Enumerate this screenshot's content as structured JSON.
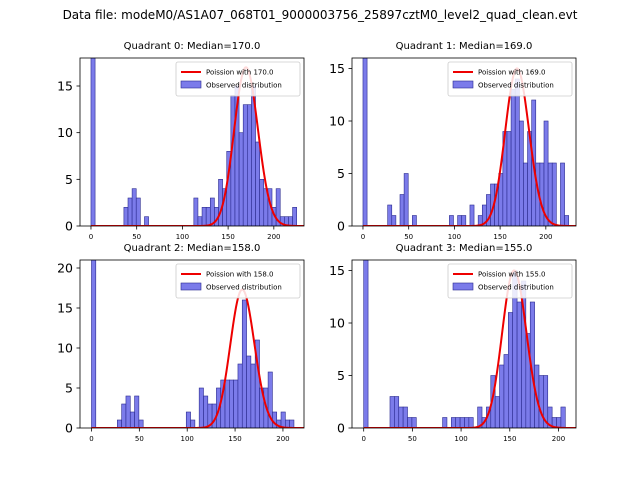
{
  "figure_title": "Data file: modeM0/AS1A07_068T01_9000003756_25897cztM0_level2_quad_clean.evt",
  "colors": {
    "bar_fill": "#7b7bea",
    "bar_edge": "#2b2b8f",
    "curve": "#ee0000"
  },
  "chart_data": [
    {
      "type": "bar",
      "title": "Quadrant 0: Median=170.0",
      "bin_width": 4.5,
      "x_lim": [
        -12,
        233
      ],
      "y_lim": [
        0,
        18
      ],
      "x_ticks": [
        0,
        50,
        100,
        150,
        200
      ],
      "x_tick_labels": [
        "0",
        "50",
        "100",
        "150",
        "200"
      ],
      "y_ticks": [
        0,
        5,
        10,
        15
      ],
      "y_tick_labels": [
        "0",
        "5",
        "10",
        "15"
      ],
      "bins": [
        [
          0,
          18
        ],
        [
          36,
          2
        ],
        [
          40.5,
          3
        ],
        [
          45,
          4
        ],
        [
          49.5,
          3
        ],
        [
          58.5,
          1
        ],
        [
          112.5,
          3
        ],
        [
          117,
          1
        ],
        [
          121.5,
          2
        ],
        [
          126,
          2
        ],
        [
          130.5,
          3
        ],
        [
          135,
          2
        ],
        [
          139.5,
          5
        ],
        [
          144,
          4
        ],
        [
          148.5,
          8
        ],
        [
          153,
          14
        ],
        [
          157.5,
          15
        ],
        [
          162,
          10
        ],
        [
          166.5,
          13
        ],
        [
          171,
          13
        ],
        [
          175.5,
          15
        ],
        [
          180,
          9
        ],
        [
          184.5,
          5
        ],
        [
          189,
          4
        ],
        [
          193.5,
          4
        ],
        [
          198,
          2
        ],
        [
          202.5,
          4
        ],
        [
          207,
          1
        ],
        [
          211.5,
          1
        ],
        [
          216,
          1
        ],
        [
          220.5,
          2
        ]
      ],
      "curve": {
        "mean": 170.0,
        "y_max": 17.0
      },
      "legend": [
        "Poission with 170.0",
        "Observed distribution"
      ]
    },
    {
      "type": "bar",
      "title": "Quadrant 1: Median=169.0",
      "bin_width": 4.5,
      "x_lim": [
        -12,
        233
      ],
      "y_lim": [
        0,
        16
      ],
      "x_ticks": [
        0,
        50,
        100,
        150,
        200
      ],
      "x_tick_labels": [
        "0",
        "50",
        "100",
        "150",
        "200"
      ],
      "y_ticks": [
        0,
        5,
        10,
        15
      ],
      "y_tick_labels": [
        "0",
        "5",
        "10",
        "15"
      ],
      "bins": [
        [
          0,
          16
        ],
        [
          27,
          2
        ],
        [
          31.5,
          1
        ],
        [
          40.5,
          3
        ],
        [
          45,
          5
        ],
        [
          54,
          1
        ],
        [
          94.5,
          1
        ],
        [
          103.5,
          1
        ],
        [
          108,
          1
        ],
        [
          117,
          2
        ],
        [
          126,
          1
        ],
        [
          130.5,
          2
        ],
        [
          135,
          3
        ],
        [
          139.5,
          4
        ],
        [
          144,
          4
        ],
        [
          148.5,
          5
        ],
        [
          153,
          9
        ],
        [
          157.5,
          9
        ],
        [
          162,
          13
        ],
        [
          166.5,
          14
        ],
        [
          171,
          10
        ],
        [
          175.5,
          6
        ],
        [
          180,
          9
        ],
        [
          184.5,
          12
        ],
        [
          189,
          6
        ],
        [
          193.5,
          6
        ],
        [
          198,
          10
        ],
        [
          202.5,
          6
        ],
        [
          207,
          6
        ],
        [
          216,
          6
        ],
        [
          220.5,
          1
        ]
      ],
      "curve": {
        "mean": 169.0,
        "y_max": 15.0
      },
      "legend": [
        "Poission with 169.0",
        "Observed distribution"
      ]
    },
    {
      "type": "bar",
      "title": "Quadrant 2: Median=158.0",
      "bin_width": 4.5,
      "x_lim": [
        -12,
        222
      ],
      "y_lim": [
        0,
        21
      ],
      "x_ticks": [
        0,
        50,
        100,
        150,
        200
      ],
      "x_tick_labels": [
        "0",
        "50",
        "100",
        "150",
        "200"
      ],
      "y_ticks": [
        0,
        5,
        10,
        15,
        20
      ],
      "y_tick_labels": [
        "0",
        "5",
        "10",
        "15",
        "20"
      ],
      "bins": [
        [
          0,
          21
        ],
        [
          27,
          1
        ],
        [
          31.5,
          3
        ],
        [
          36,
          4
        ],
        [
          40.5,
          2
        ],
        [
          45,
          4
        ],
        [
          49.5,
          1
        ],
        [
          99,
          2
        ],
        [
          103.5,
          1
        ],
        [
          112.5,
          5
        ],
        [
          117,
          4
        ],
        [
          121.5,
          3
        ],
        [
          126,
          3
        ],
        [
          130.5,
          5
        ],
        [
          135,
          6
        ],
        [
          139.5,
          6
        ],
        [
          144,
          6
        ],
        [
          148.5,
          6
        ],
        [
          153,
          8
        ],
        [
          157.5,
          16
        ],
        [
          162,
          9
        ],
        [
          166.5,
          8
        ],
        [
          171,
          11
        ],
        [
          175.5,
          5
        ],
        [
          180,
          5
        ],
        [
          184.5,
          7
        ],
        [
          189,
          2
        ],
        [
          193.5,
          1
        ],
        [
          198,
          2
        ],
        [
          202.5,
          1
        ],
        [
          207,
          1
        ]
      ],
      "curve": {
        "mean": 158.0,
        "y_max": 17.3
      },
      "legend": [
        "Poission with 158.0",
        "Observed distribution"
      ]
    },
    {
      "type": "bar",
      "title": "Quadrant 3: Median=155.0",
      "bin_width": 4.5,
      "x_lim": [
        -12,
        218
      ],
      "y_lim": [
        0,
        16
      ],
      "x_ticks": [
        0,
        50,
        100,
        150,
        200
      ],
      "x_tick_labels": [
        "0",
        "50",
        "100",
        "150",
        "200"
      ],
      "y_ticks": [
        0,
        5,
        10,
        15
      ],
      "y_tick_labels": [
        "0",
        "5",
        "10",
        "15"
      ],
      "bins": [
        [
          0,
          16
        ],
        [
          27,
          3
        ],
        [
          31.5,
          3
        ],
        [
          36,
          2
        ],
        [
          40.5,
          2
        ],
        [
          45,
          1
        ],
        [
          49.5,
          1
        ],
        [
          81,
          1
        ],
        [
          90,
          1
        ],
        [
          94.5,
          1
        ],
        [
          99,
          1
        ],
        [
          103.5,
          1
        ],
        [
          108,
          1
        ],
        [
          117,
          2
        ],
        [
          121.5,
          1
        ],
        [
          126,
          2
        ],
        [
          130.5,
          5
        ],
        [
          135,
          3
        ],
        [
          139.5,
          6
        ],
        [
          144,
          7
        ],
        [
          148.5,
          11
        ],
        [
          153,
          15
        ],
        [
          157.5,
          12
        ],
        [
          162,
          14
        ],
        [
          166.5,
          9
        ],
        [
          171,
          12
        ],
        [
          175.5,
          6
        ],
        [
          180,
          5
        ],
        [
          184.5,
          5
        ],
        [
          189,
          2
        ],
        [
          193.5,
          1
        ],
        [
          198,
          1
        ],
        [
          202.5,
          2
        ]
      ],
      "curve": {
        "mean": 155.0,
        "y_max": 15.0
      },
      "legend": [
        "Poission with 155.0",
        "Observed distribution"
      ]
    }
  ]
}
